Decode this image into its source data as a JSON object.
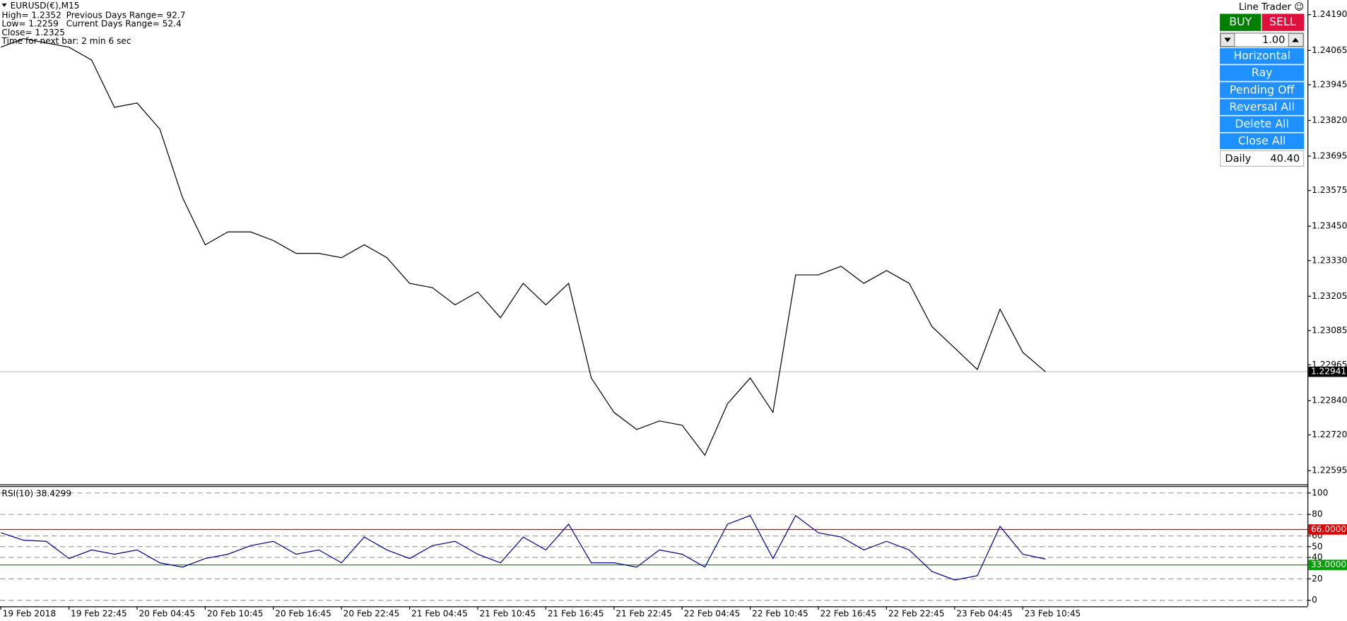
{
  "header": {
    "symbol": "EURUSD(€),M15",
    "high": "High= 1.2352",
    "low": "Low= 1.2259",
    "close": "Close= 1.2325",
    "timer": "Time for next bar: 2 min 6 sec",
    "prev_range": "Previous Days Range= 92.7",
    "cur_range": "Current Days Range= 52.4"
  },
  "panel": {
    "title": "Line Trader ☺",
    "buy": "BUY",
    "sell": "SELL",
    "lots": "1.00",
    "buttons": [
      "Horizontal",
      "Ray",
      "Pending Off",
      "Reversal All",
      "Delete All",
      "Close All"
    ],
    "daily_label": "Daily",
    "daily_value": "40.40"
  },
  "chart_data": [
    {
      "type": "line",
      "color": "#000000",
      "values": [
        1.24076,
        1.24106,
        1.24091,
        1.24076,
        1.24031,
        1.23866,
        1.23881,
        1.2379,
        1.2355,
        1.23385,
        1.2343,
        1.2343,
        1.234,
        1.23355,
        1.23355,
        1.2334,
        1.23385,
        1.2334,
        1.2325,
        1.23235,
        1.23175,
        1.2322,
        1.2313,
        1.2325,
        1.23175,
        1.2325,
        1.22919,
        1.22799,
        1.22739,
        1.22769,
        1.22754,
        1.22649,
        1.22829,
        1.22919,
        1.22799,
        1.2328,
        1.2328,
        1.2331,
        1.2325,
        1.23295,
        1.2325,
        1.23099,
        1.23024,
        1.22949,
        1.2316,
        1.23009,
        1.22941
      ],
      "ylim": [
        1.2255,
        1.24241
      ],
      "yticks": [
        {
          "value": 1.2419,
          "label": "1.24190"
        },
        1.24065,
        1.23945,
        {
          "value": 1.2382,
          "label": "1.23820"
        },
        1.23695,
        1.23575,
        {
          "value": 1.2345,
          "label": "1.23450"
        },
        {
          "value": 1.2333,
          "label": "1.23330"
        },
        1.23205,
        1.23085,
        1.22965,
        {
          "value": 1.2284,
          "label": "1.22840"
        },
        {
          "value": 1.2272,
          "label": "1.22720"
        },
        1.22595
      ],
      "current_price": 1.22941
    },
    {
      "type": "line",
      "title": "RSI(10) 38.4299",
      "color": "#00008b",
      "categories": [
        "19 Feb 2018",
        null,
        null,
        "19 Feb 22:45",
        null,
        null,
        "20 Feb 04:45",
        null,
        null,
        "20 Feb 10:45",
        null,
        null,
        "20 Feb 16:45",
        null,
        null,
        "20 Feb 22:45",
        null,
        null,
        "21 Feb 04:45",
        null,
        null,
        "21 Feb 10:45",
        null,
        null,
        "21 Feb 16:45",
        null,
        null,
        "21 Feb 22:45",
        null,
        null,
        "22 Feb 04:45",
        null,
        null,
        "22 Feb 10:45",
        null,
        null,
        "22 Feb 16:45",
        null,
        null,
        "22 Feb 22:45",
        null,
        null,
        "23 Feb 04:45",
        null,
        null,
        "23 Feb 10:45",
        null
      ],
      "values": [
        63,
        56,
        55,
        39,
        47,
        43,
        47,
        35,
        31,
        39,
        43,
        51,
        55,
        43,
        47,
        35,
        59,
        47,
        39,
        51,
        55,
        43,
        35,
        59,
        47,
        71,
        35,
        35,
        31,
        47,
        43,
        31,
        71,
        79,
        39,
        79,
        63,
        59,
        47,
        55,
        47,
        27,
        19,
        23,
        69,
        43,
        38.4299
      ],
      "ylim": [
        -5.6,
        105.6
      ],
      "yticks": [
        0,
        20,
        40,
        50,
        60,
        80,
        100
      ],
      "grid": true,
      "levels": [
        {
          "value": 66,
          "label": "66.0000",
          "color": "#e00000"
        },
        {
          "value": 33,
          "label": "33.0000",
          "color": "#00a000"
        }
      ]
    }
  ]
}
